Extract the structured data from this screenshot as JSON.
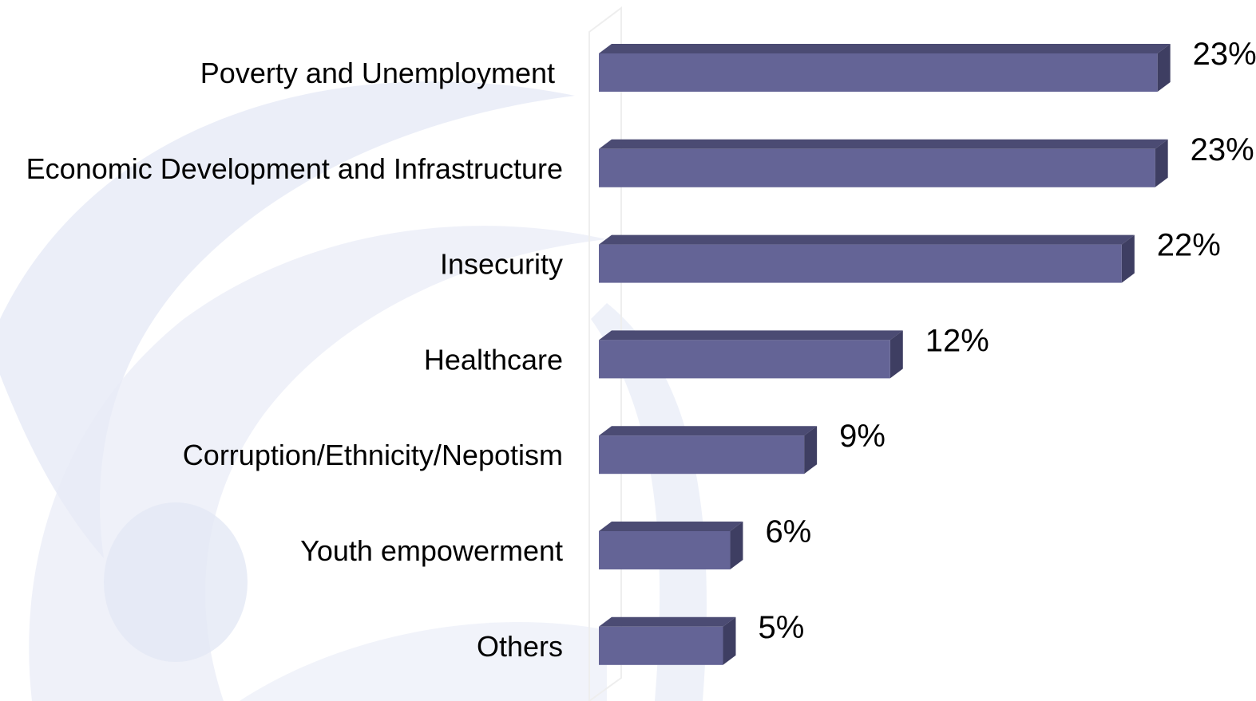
{
  "colors": {
    "bar_front": "#646496",
    "bar_top": "#4b4b73",
    "bar_side": "#3e3e62",
    "watermark": "#e8ebf7",
    "axis_wall": "#eeeeee"
  },
  "chart_data": {
    "type": "bar",
    "orientation": "horizontal",
    "style": "3d",
    "categories": [
      "Poverty and Unemployment",
      "Economic Development and Infrastructure",
      "Insecurity",
      "Healthcare",
      "Corruption/Ethnicity/Nepotism",
      "Youth empowerment",
      "Others"
    ],
    "values": [
      23.4,
      23.3,
      21.9,
      12.2,
      8.6,
      5.5,
      5.2
    ],
    "value_labels": [
      "23%",
      "23%",
      "22%",
      "12%",
      "9%",
      "6%",
      "5%"
    ],
    "xlim": [
      0,
      24
    ],
    "grid": false,
    "legend": "none"
  }
}
